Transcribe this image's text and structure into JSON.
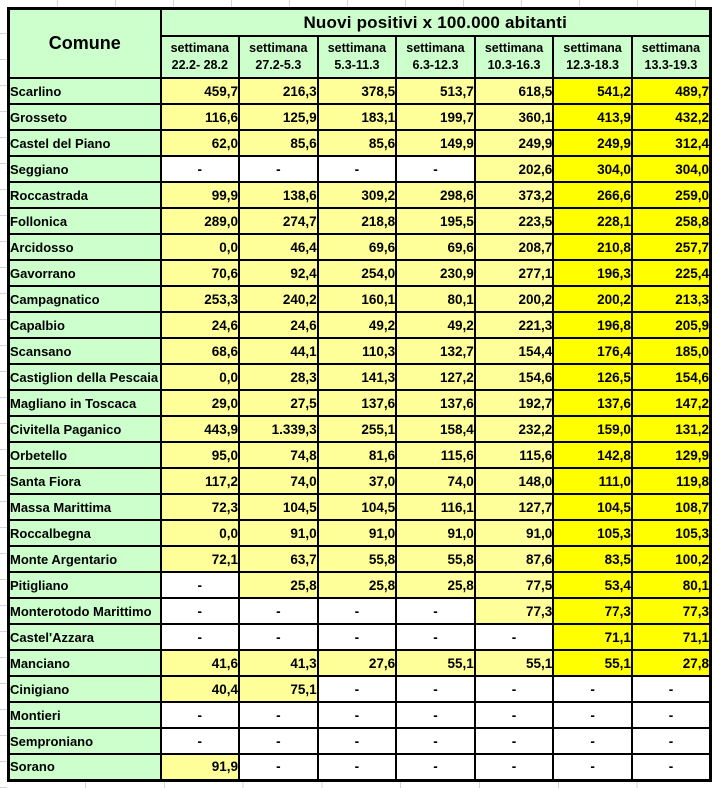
{
  "chart_data": {
    "type": "table",
    "title": "Nuovi positivi x 100.000 abitanti",
    "corner_label": "Comune",
    "week_label": "settimana",
    "week_ranges": [
      "22.2- 28.2",
      "27.2-5.3",
      "5.3-11.3",
      "6.3-12.3",
      "10.3-16.3",
      "12.3-18.3",
      "13.3-19.3"
    ],
    "missing_marker": "-",
    "highlight_recent_columns": [
      5,
      6
    ],
    "rows": [
      {
        "comune": "Scarlino",
        "values": [
          "459,7",
          "216,3",
          "378,5",
          "513,7",
          "618,5",
          "541,2",
          "489,7"
        ]
      },
      {
        "comune": "Grosseto",
        "values": [
          "116,6",
          "125,9",
          "183,1",
          "199,7",
          "360,1",
          "413,9",
          "432,2"
        ]
      },
      {
        "comune": "Castel del Piano",
        "values": [
          "62,0",
          "85,6",
          "85,6",
          "149,9",
          "249,9",
          "249,9",
          "312,4"
        ]
      },
      {
        "comune": "Seggiano",
        "values": [
          "-",
          "-",
          "-",
          "-",
          "202,6",
          "304,0",
          "304,0"
        ]
      },
      {
        "comune": "Roccastrada",
        "values": [
          "99,9",
          "138,6",
          "309,2",
          "298,6",
          "373,2",
          "266,6",
          "259,0"
        ]
      },
      {
        "comune": "Follonica",
        "values": [
          "289,0",
          "274,7",
          "218,8",
          "195,5",
          "223,5",
          "228,1",
          "258,8"
        ]
      },
      {
        "comune": "Arcidosso",
        "values": [
          "0,0",
          "46,4",
          "69,6",
          "69,6",
          "208,7",
          "210,8",
          "257,7"
        ]
      },
      {
        "comune": "Gavorrano",
        "values": [
          "70,6",
          "92,4",
          "254,0",
          "230,9",
          "277,1",
          "196,3",
          "225,4"
        ]
      },
      {
        "comune": "Campagnatico",
        "values": [
          "253,3",
          "240,2",
          "160,1",
          "80,1",
          "200,2",
          "200,2",
          "213,3"
        ]
      },
      {
        "comune": "Capalbio",
        "values": [
          "24,6",
          "24,6",
          "49,2",
          "49,2",
          "221,3",
          "196,8",
          "205,9"
        ]
      },
      {
        "comune": "Scansano",
        "values": [
          "68,6",
          "44,1",
          "110,3",
          "132,7",
          "154,4",
          "176,4",
          "185,0"
        ]
      },
      {
        "comune": "Castiglion della Pescaia",
        "values": [
          "0,0",
          "28,3",
          "141,3",
          "127,2",
          "154,6",
          "126,5",
          "154,6"
        ]
      },
      {
        "comune": "Magliano in Toscaca",
        "values": [
          "29,0",
          "27,5",
          "137,6",
          "137,6",
          "192,7",
          "137,6",
          "147,2"
        ]
      },
      {
        "comune": "Civitella Paganico",
        "values": [
          "443,9",
          "1.339,3",
          "255,1",
          "158,4",
          "232,2",
          "159,0",
          "131,2"
        ]
      },
      {
        "comune": "Orbetello",
        "values": [
          "95,0",
          "74,8",
          "81,6",
          "115,6",
          "115,6",
          "142,8",
          "129,9"
        ]
      },
      {
        "comune": "Santa Fiora",
        "values": [
          "117,2",
          "74,0",
          "37,0",
          "74,0",
          "148,0",
          "111,0",
          "119,8"
        ]
      },
      {
        "comune": "Massa Marittima",
        "values": [
          "72,3",
          "104,5",
          "104,5",
          "116,1",
          "127,7",
          "104,5",
          "108,7"
        ]
      },
      {
        "comune": "Roccalbegna",
        "values": [
          "0,0",
          "91,0",
          "91,0",
          "91,0",
          "91,0",
          "105,3",
          "105,3"
        ]
      },
      {
        "comune": "Monte Argentario",
        "values": [
          "72,1",
          "63,7",
          "55,8",
          "55,8",
          "87,6",
          "83,5",
          "100,2"
        ]
      },
      {
        "comune": "Pitigliano",
        "values": [
          "-",
          "25,8",
          "25,8",
          "25,8",
          "77,5",
          "53,4",
          "80,1"
        ]
      },
      {
        "comune": "Monterotodo Marittimo",
        "values": [
          "-",
          "-",
          "-",
          "-",
          "77,3",
          "77,3",
          "77,3"
        ]
      },
      {
        "comune": "Castel'Azzara",
        "values": [
          "-",
          "-",
          "-",
          "-",
          "-",
          "71,1",
          "71,1"
        ]
      },
      {
        "comune": "Manciano",
        "values": [
          "41,6",
          "41,3",
          "27,6",
          "55,1",
          "55,1",
          "55,1",
          "27,8"
        ]
      },
      {
        "comune": "Cinigiano",
        "values": [
          "40,4",
          "75,1",
          "-",
          "-",
          "-",
          "-",
          "-"
        ]
      },
      {
        "comune": "Montieri",
        "values": [
          "-",
          "-",
          "-",
          "-",
          "-",
          "-",
          "-"
        ]
      },
      {
        "comune": "Semproniano",
        "values": [
          "-",
          "-",
          "-",
          "-",
          "-",
          "-",
          "-"
        ]
      },
      {
        "comune": "Sorano",
        "values": [
          "91,9",
          "-",
          "-",
          "-",
          "-",
          "-",
          "-"
        ]
      }
    ]
  },
  "colors": {
    "header_green": "#ccffcc",
    "value_pale_yellow": "#ffff99",
    "recent_hot_yellow": "#ffff00",
    "missing_white": "#ffffff",
    "border_black": "#000000",
    "margin_gridline_gray": "#d4d4d4"
  }
}
